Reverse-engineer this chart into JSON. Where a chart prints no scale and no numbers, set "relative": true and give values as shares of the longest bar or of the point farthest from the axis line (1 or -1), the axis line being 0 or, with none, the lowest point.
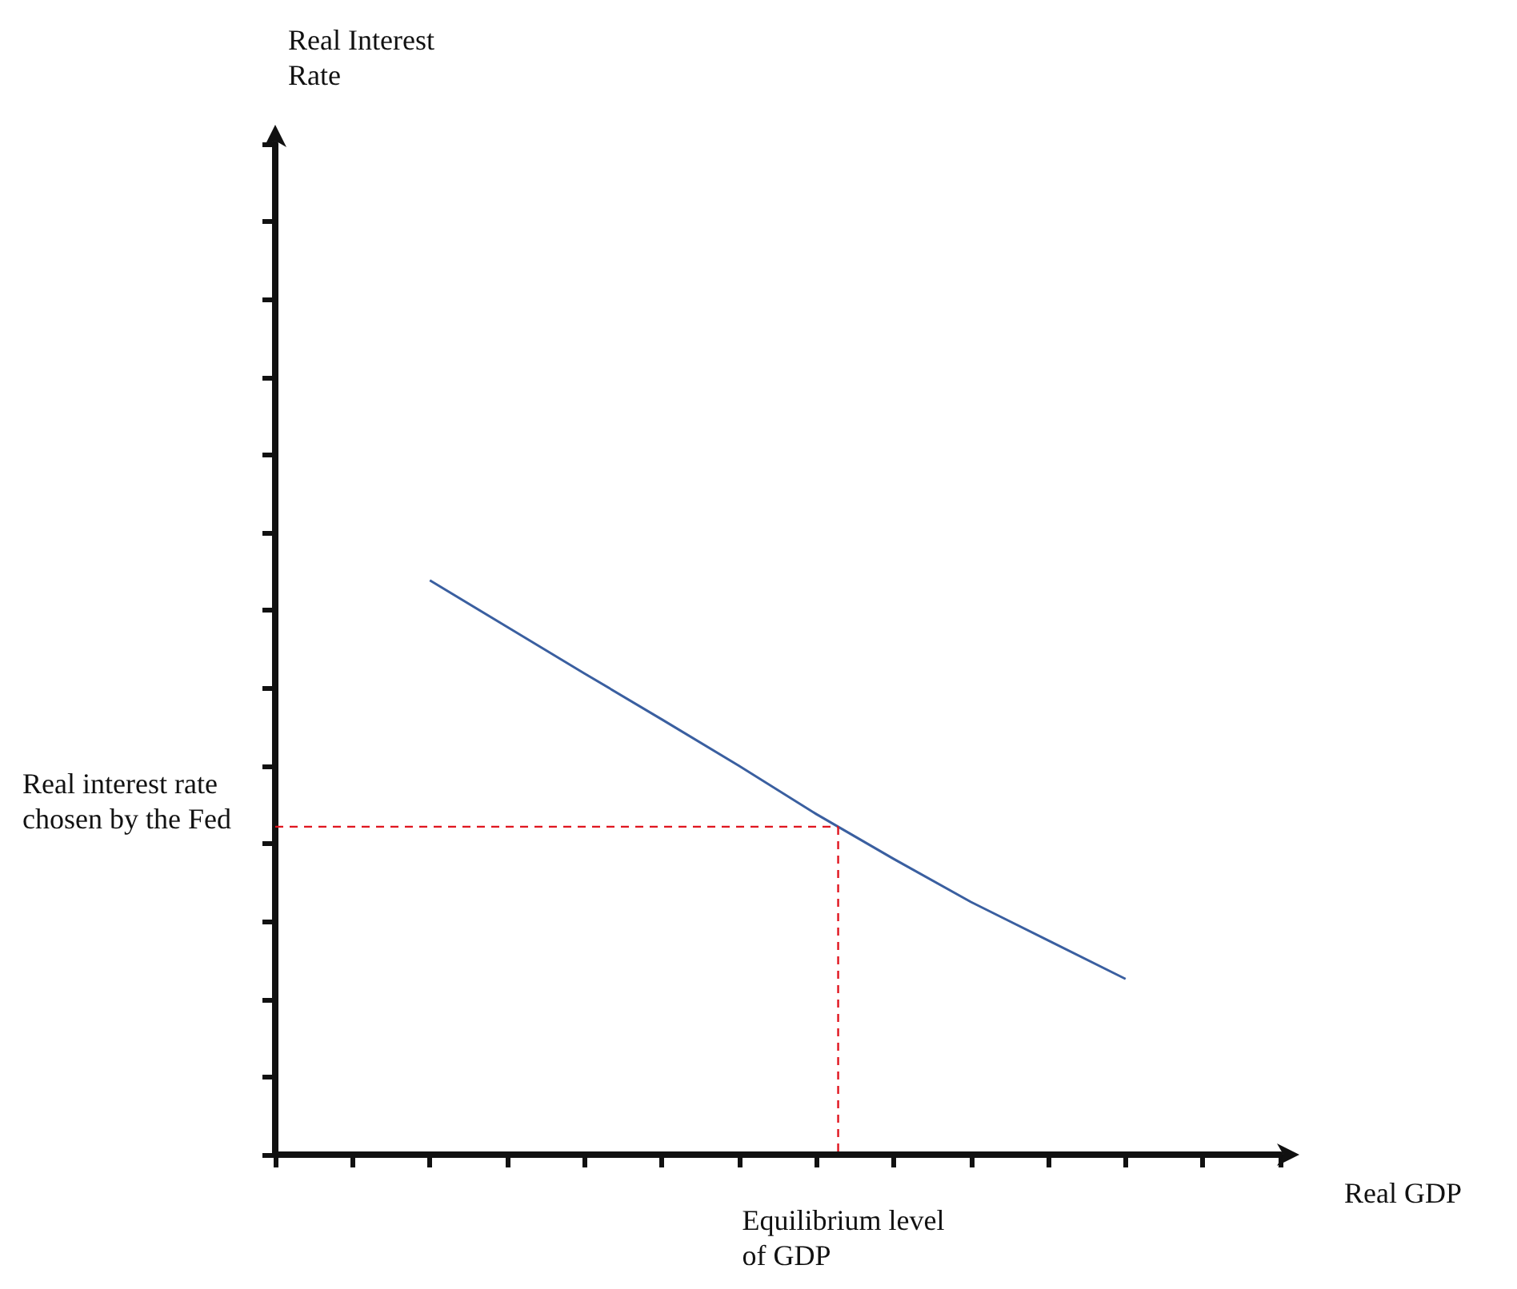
{
  "chart_data": {
    "type": "line",
    "xlabel": "Real GDP",
    "relative": true,
    "categories": [
      null,
      null,
      null,
      null,
      null,
      null,
      null,
      null,
      null,
      null,
      null,
      null,
      null,
      null
    ],
    "series": [
      {
        "color": "#3a5fa0",
        "values": [
          null,
          null,
          1,
          0.919,
          0.838,
          0.758,
          0.677,
          0.593,
          0.515,
          0.44,
          0.373,
          0.306,
          null,
          null
        ]
      }
    ],
    "ref_lines": [
      {
        "axis": "y",
        "value": 0.571,
        "label": "Real interest rate chosen by the Fed",
        "color": "#e0141e",
        "line_style": "dashed"
      }
    ],
    "annotations": [
      "Real Interest Rate",
      "Equilibrium level of GDP"
    ],
    "marker": "none"
  }
}
